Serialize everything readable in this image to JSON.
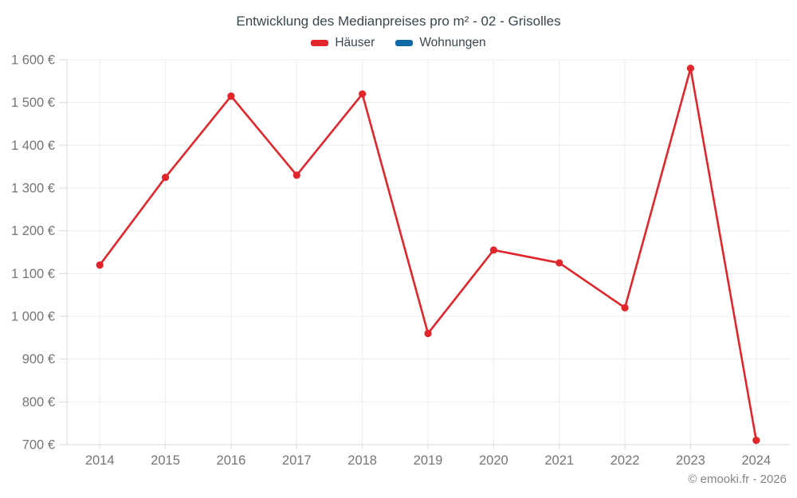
{
  "page": {
    "title": "Entwicklung des Medianpreises pro m² - 02 - Grisolles",
    "credit": "© emooki.fr - 2026"
  },
  "chart_data": {
    "type": "line",
    "title": "Entwicklung des Medianpreises pro m² - 02 - Grisolles",
    "categories": [
      "2014",
      "2015",
      "2016",
      "2017",
      "2018",
      "2019",
      "2020",
      "2021",
      "2022",
      "2023",
      "2024"
    ],
    "series": [
      {
        "name": "Häuser",
        "color": "#e0252b",
        "values": [
          1120,
          1325,
          1515,
          1330,
          1520,
          960,
          1155,
          1125,
          1020,
          1580,
          710
        ]
      },
      {
        "name": "Wohnungen",
        "color": "#0e6ba8",
        "values": []
      }
    ],
    "xlabel": "",
    "ylabel": "",
    "ylim": [
      700,
      1600
    ],
    "y_tick_step": 100,
    "y_tick_labels": [
      "700 €",
      "800 €",
      "900 €",
      "1 000 €",
      "1 100 €",
      "1 200 €",
      "1 300 €",
      "1 400 €",
      "1 500 €",
      "1 600 €"
    ],
    "grid": true,
    "legend_position": "top",
    "colors": {
      "axis_text": "#757575",
      "grid_line": "#ececec",
      "axis_line": "#d9d9d9",
      "title_text": "#37474f"
    }
  }
}
